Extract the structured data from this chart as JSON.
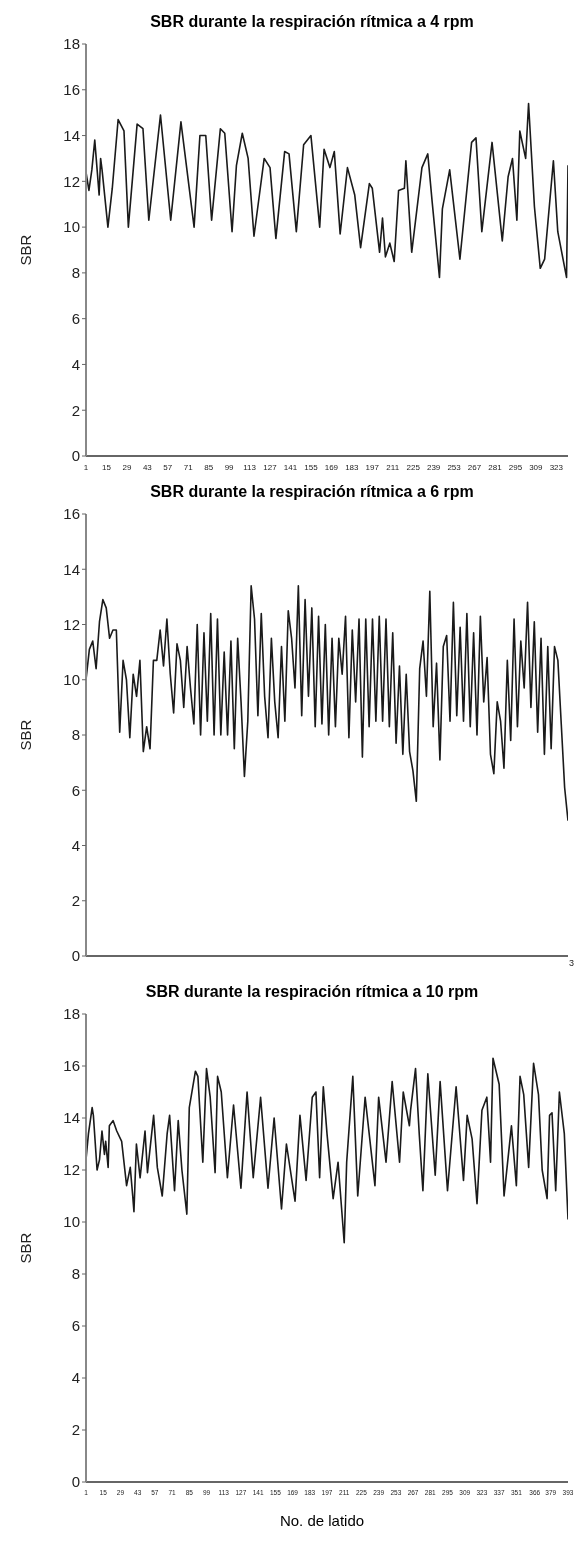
{
  "chart_data": [
    {
      "type": "line",
      "title": "SBR durante la respiración rítmica a 4 rpm",
      "ylabel": "SBR",
      "color": "#1a1a1a",
      "x": [
        1,
        3,
        5,
        7,
        10,
        11,
        12,
        16,
        19,
        23,
        27,
        30,
        36,
        40,
        44,
        52,
        59,
        66,
        75,
        79,
        83,
        87,
        93,
        96,
        101,
        104,
        108,
        112,
        116,
        123,
        127,
        131,
        137,
        140,
        145,
        150,
        155,
        161,
        164,
        168,
        171,
        175,
        180,
        185,
        189,
        195,
        197,
        202,
        204,
        206,
        209,
        212,
        215,
        219,
        220,
        224,
        231,
        235,
        238,
        243,
        245,
        250,
        257,
        265,
        268,
        272,
        279,
        286,
        290,
        293,
        296,
        298,
        302,
        304,
        308,
        312,
        315,
        321,
        324,
        330,
        331
      ],
      "values": [
        12.4,
        11.6,
        12.5,
        13.8,
        11.4,
        13.0,
        12.5,
        10.0,
        11.7,
        14.7,
        14.2,
        10.0,
        14.5,
        14.3,
        10.3,
        14.9,
        10.3,
        14.6,
        10.0,
        14.0,
        14.0,
        10.3,
        14.3,
        14.1,
        9.8,
        12.7,
        14.1,
        13.0,
        9.6,
        13.0,
        12.6,
        9.5,
        13.3,
        13.2,
        9.8,
        13.6,
        14.0,
        10.0,
        13.4,
        12.6,
        13.3,
        9.7,
        12.6,
        11.4,
        9.1,
        11.9,
        11.7,
        8.9,
        10.4,
        8.7,
        9.3,
        8.5,
        11.6,
        11.7,
        12.9,
        8.9,
        12.6,
        13.2,
        11.1,
        7.8,
        10.8,
        12.5,
        8.6,
        13.7,
        13.9,
        9.8,
        13.7,
        9.4,
        12.2,
        13.0,
        10.3,
        14.2,
        13.0,
        15.4,
        10.9,
        8.2,
        8.6,
        12.9,
        9.8,
        7.8,
        12.7
      ],
      "xlim": [
        1,
        331
      ],
      "xticks": [
        1,
        15,
        29,
        43,
        57,
        71,
        85,
        99,
        113,
        127,
        141,
        155,
        169,
        183,
        197,
        211,
        225,
        239,
        253,
        267,
        281,
        295,
        309,
        323
      ],
      "ylim": [
        0,
        18
      ],
      "yticks": [
        0,
        2,
        4,
        6,
        8,
        10,
        12,
        14,
        16,
        18
      ]
    },
    {
      "type": "line",
      "title": "SBR durante la respiración rítmica a 6 rpm",
      "ylabel": "SBR",
      "color": "#1a1a1a",
      "categories": [
        null,
        null,
        null,
        null,
        null,
        null,
        null,
        null,
        null,
        null,
        null,
        null,
        null,
        null,
        null,
        null,
        null,
        null,
        null,
        null,
        null,
        null,
        null,
        null,
        null,
        null,
        null,
        null,
        null,
        null,
        null,
        null,
        null,
        null,
        null,
        null,
        null,
        null,
        null,
        null,
        null,
        null,
        null,
        null,
        null,
        null,
        null,
        null,
        null,
        null,
        null,
        null,
        null,
        null,
        null,
        null,
        null,
        null,
        null,
        null,
        null,
        null,
        null,
        null,
        null,
        null,
        null,
        null,
        null,
        null,
        null,
        null,
        null,
        null,
        null,
        null,
        null,
        null,
        null,
        null,
        null,
        null,
        null,
        null,
        null,
        null,
        null,
        null,
        null,
        null,
        null,
        null,
        null,
        null,
        null,
        null,
        null,
        null,
        null,
        null,
        null,
        null,
        null,
        null,
        null,
        null,
        null,
        null,
        null,
        null,
        null,
        null,
        null,
        null,
        null,
        null,
        null,
        null,
        null,
        null,
        null,
        null,
        null,
        null,
        null,
        null,
        null,
        null,
        null,
        null,
        null,
        null,
        null,
        null,
        null,
        null,
        null,
        null,
        null,
        null,
        null,
        null,
        null,
        null
      ],
      "annotations": [
        "3"
      ],
      "values": [
        10.0,
        11.1,
        11.4,
        10.4,
        12.1,
        12.9,
        12.6,
        11.5,
        11.8,
        11.8,
        8.1,
        10.7,
        10.0,
        7.9,
        10.2,
        9.4,
        10.7,
        7.4,
        8.3,
        7.5,
        10.7,
        10.7,
        11.8,
        10.5,
        12.2,
        10.2,
        8.8,
        11.3,
        10.7,
        9.0,
        11.2,
        9.7,
        8.4,
        12.0,
        8.0,
        11.7,
        8.5,
        12.4,
        8.0,
        12.2,
        8.0,
        11.0,
        8.0,
        11.4,
        7.5,
        11.5,
        9.2,
        6.5,
        8.5,
        13.4,
        12.2,
        8.7,
        12.4,
        9.4,
        7.9,
        11.5,
        9.2,
        7.9,
        11.2,
        8.5,
        12.5,
        11.5,
        9.7,
        13.4,
        8.7,
        12.9,
        9.4,
        12.6,
        8.3,
        12.3,
        8.4,
        12.0,
        8.0,
        11.5,
        8.3,
        11.5,
        10.2,
        12.3,
        7.9,
        11.8,
        9.2,
        12.2,
        7.2,
        12.2,
        8.3,
        12.2,
        8.5,
        12.3,
        8.5,
        12.2,
        8.3,
        11.7,
        7.7,
        10.5,
        7.3,
        10.2,
        7.4,
        6.7,
        5.6,
        10.4,
        11.4,
        9.4,
        13.2,
        8.3,
        10.6,
        7.1,
        11.2,
        11.6,
        8.5,
        12.8,
        8.7,
        11.9,
        8.5,
        12.4,
        8.3,
        11.7,
        8.0,
        12.3,
        9.2,
        10.8,
        7.3,
        6.6,
        9.2,
        8.5,
        6.8,
        10.7,
        7.8,
        12.2,
        8.3,
        11.4,
        9.7,
        12.8,
        9.0,
        12.1,
        8.1,
        11.5,
        7.3,
        11.2,
        7.5,
        11.2,
        10.7,
        8.4,
        6.1,
        4.9
      ],
      "ylim": [
        0,
        16
      ],
      "yticks": [
        0,
        2,
        4,
        6,
        8,
        10,
        12,
        14,
        16
      ]
    },
    {
      "type": "line",
      "title": "SBR durante la respiración rítmica a 10 rpm",
      "ylabel": "SBR",
      "xlabel": "No. de latido",
      "color": "#1a1a1a",
      "x": [
        1,
        3,
        6,
        7,
        10,
        12,
        14,
        16,
        17,
        19,
        20,
        23,
        26,
        30,
        34,
        37,
        39,
        40,
        42,
        45,
        49,
        51,
        56,
        59,
        63,
        67,
        69,
        73,
        76,
        79,
        83,
        85,
        90,
        92,
        96,
        99,
        102,
        106,
        108,
        111,
        116,
        121,
        127,
        132,
        137,
        143,
        149,
        154,
        160,
        164,
        171,
        175,
        180,
        185,
        188,
        191,
        194,
        197,
        202,
        206,
        211,
        213,
        218,
        222,
        228,
        236,
        239,
        245,
        250,
        256,
        259,
        264,
        265,
        269,
        272,
        275,
        279,
        285,
        289,
        295,
        302,
        308,
        311,
        315,
        319,
        323,
        327,
        330,
        332,
        337,
        341,
        347,
        351,
        354,
        357,
        361,
        365,
        369,
        372,
        376,
        378,
        380,
        383,
        386,
        390,
        393
      ],
      "values": [
        12.4,
        13.4,
        14.4,
        14.1,
        12.0,
        12.4,
        13.5,
        12.6,
        13.1,
        12.1,
        13.7,
        13.9,
        13.5,
        13.1,
        11.4,
        12.1,
        11.0,
        10.4,
        13.0,
        11.7,
        13.5,
        11.9,
        14.1,
        12.1,
        11.0,
        13.4,
        14.1,
        11.2,
        13.9,
        12.0,
        10.3,
        14.4,
        15.8,
        15.6,
        12.3,
        15.9,
        14.8,
        11.9,
        15.6,
        15.0,
        11.7,
        14.5,
        11.3,
        15.0,
        11.7,
        14.8,
        11.3,
        14.0,
        10.5,
        13.0,
        10.8,
        14.1,
        11.6,
        14.8,
        15.0,
        11.7,
        15.2,
        13.4,
        10.9,
        12.3,
        9.2,
        12.3,
        15.6,
        11.0,
        14.8,
        11.4,
        14.8,
        12.3,
        15.4,
        12.3,
        15.0,
        13.7,
        14.3,
        15.9,
        13.4,
        11.2,
        15.7,
        11.8,
        15.4,
        11.2,
        15.2,
        11.6,
        14.1,
        13.2,
        10.7,
        14.3,
        14.8,
        12.3,
        16.3,
        15.3,
        11.0,
        13.7,
        11.4,
        15.6,
        14.9,
        12.1,
        16.1,
        14.9,
        12.0,
        10.9,
        14.1,
        14.2,
        11.2,
        15.0,
        13.4,
        10.1
      ],
      "xlim": [
        1,
        393
      ],
      "xticks": [
        1,
        15,
        29,
        43,
        57,
        71,
        85,
        99,
        113,
        127,
        141,
        155,
        169,
        183,
        197,
        211,
        225,
        239,
        253,
        267,
        281,
        295,
        309,
        323,
        337,
        351,
        366,
        379,
        393
      ],
      "ylim": [
        0,
        18
      ],
      "yticks": [
        0,
        2,
        4,
        6,
        8,
        10,
        12,
        14,
        16,
        18
      ]
    }
  ]
}
